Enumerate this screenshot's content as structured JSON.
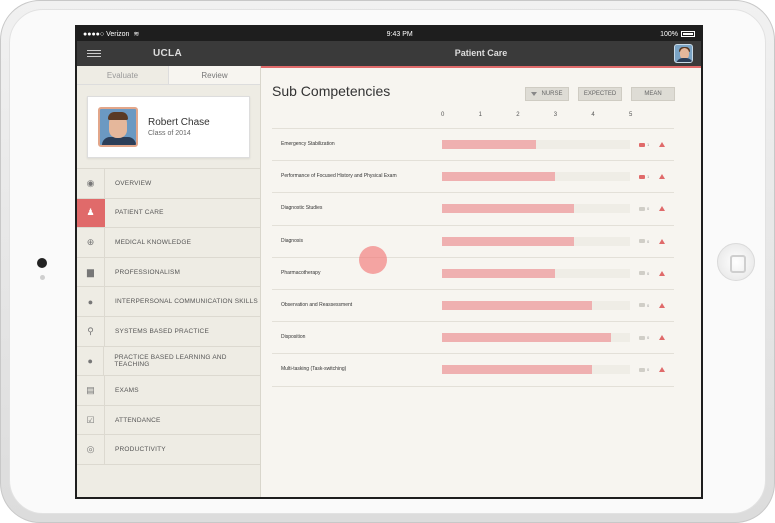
{
  "status_bar": {
    "carrier": "●●●●○ Verizon",
    "time": "9:43 PM",
    "battery": "100%"
  },
  "nav": {
    "brand": "UCLA",
    "title": "Patient Care"
  },
  "sidebar": {
    "tabs": [
      {
        "label": "Evaluate"
      },
      {
        "label": "Review"
      }
    ],
    "active_tab": "Review",
    "profile": {
      "name": "Robert Chase",
      "class": "Class of 2014"
    },
    "items": [
      {
        "label": "OVERVIEW",
        "icon": "eye-icon",
        "glyph": "◉"
      },
      {
        "label": "PATIENT CARE",
        "icon": "person-icon",
        "glyph": "♟",
        "active": true
      },
      {
        "label": "MEDICAL KNOWLEDGE",
        "icon": "plus-circle-icon",
        "glyph": "⊕"
      },
      {
        "label": "PROFESSIONALISM",
        "icon": "briefcase-icon",
        "glyph": "▆"
      },
      {
        "label": "INTERPERSONAL COMMUNICATION SKILLS",
        "icon": "chat-bubble-icon",
        "glyph": "●"
      },
      {
        "label": "SYSTEMS BASED PRACTICE",
        "icon": "network-icon",
        "glyph": "⚲"
      },
      {
        "label": "PRACTICE BASED LEARNING AND TEACHING",
        "icon": "apple-icon",
        "glyph": "●"
      },
      {
        "label": "EXAMS",
        "icon": "exam-icon",
        "glyph": "▤"
      },
      {
        "label": "ATTENDANCE",
        "icon": "checkbox-icon",
        "glyph": "☑"
      },
      {
        "label": "PRODUCTIVITY",
        "icon": "gauge-icon",
        "glyph": "◎"
      }
    ]
  },
  "main": {
    "title": "Sub Competencies",
    "filters": {
      "nurse": "NURSE",
      "expected": "EXPECTED",
      "mean": "MEAN"
    },
    "scale": [
      "0",
      "1",
      "2",
      "3",
      "4",
      "5"
    ],
    "rows": [
      {
        "label": "Emergency Stabilization",
        "score": 2.5,
        "comments": "1",
        "comment_highlight": true
      },
      {
        "label": "Performance of Focused History and Physical Exam",
        "score": 3.0,
        "comments": "1",
        "comment_highlight": true
      },
      {
        "label": "Diagnostic Studies",
        "score": 3.5,
        "comments": "0",
        "comment_highlight": false
      },
      {
        "label": "Diagnosis",
        "score": 3.5,
        "comments": "0",
        "comment_highlight": false
      },
      {
        "label": "Pharmacotherapy",
        "score": 3.0,
        "comments": "0",
        "comment_highlight": false
      },
      {
        "label": "Observation and Reassessment",
        "score": 4.0,
        "comments": "0",
        "comment_highlight": false
      },
      {
        "label": "Disposition",
        "score": 4.5,
        "comments": "0",
        "comment_highlight": false
      },
      {
        "label": "Multi-tasking (Task-switching)",
        "score": 4.0,
        "comments": "0",
        "comment_highlight": false
      }
    ],
    "scale_max": 5
  },
  "colors": {
    "accent": "#e06a6a",
    "bar": "#efb0b0",
    "navbar": "#3a3a3a"
  }
}
